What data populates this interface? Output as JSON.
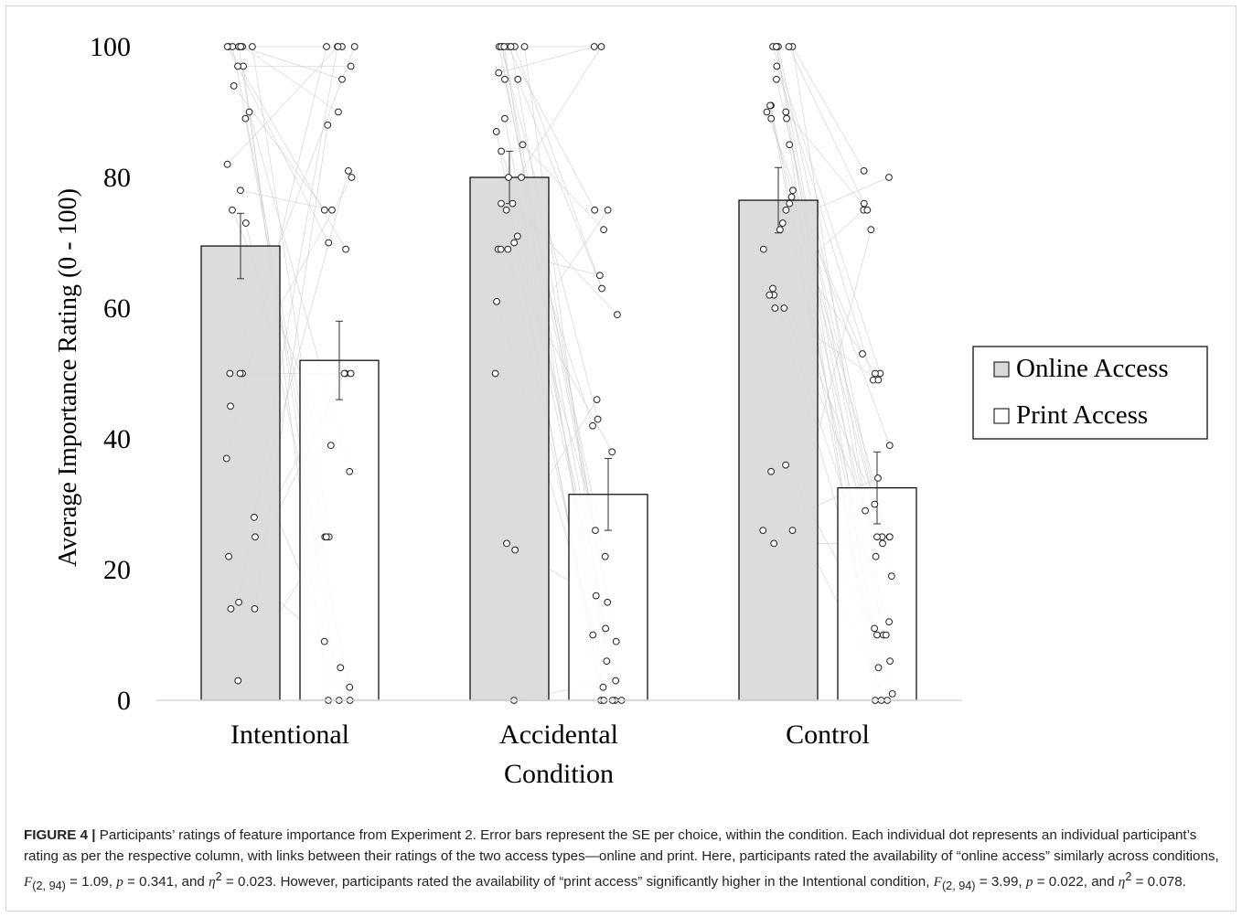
{
  "chart_data": {
    "type": "bar",
    "xlabel": "Condition",
    "ylabel": "Average Importance Rating (0 - 100)",
    "ylim": [
      0,
      100
    ],
    "yticks": [
      0,
      20,
      40,
      60,
      80,
      100
    ],
    "categories": [
      "Intentional",
      "Accidental",
      "Control"
    ],
    "series": [
      {
        "name": "Online Access",
        "color": "#d9d9d9",
        "values": [
          69.5,
          80,
          76.5
        ],
        "se": [
          5,
          4,
          5
        ],
        "points": [
          [
            100,
            100,
            100,
            100,
            100,
            100,
            100,
            100,
            97,
            97,
            94,
            90,
            89,
            82,
            78,
            75,
            73,
            50,
            50,
            50,
            45,
            37,
            28,
            25,
            22,
            15,
            14,
            14,
            3
          ],
          [
            100,
            100,
            100,
            100,
            100,
            100,
            100,
            100,
            100,
            96,
            95,
            95,
            89,
            87,
            85,
            84,
            80,
            80,
            76,
            76,
            75,
            71,
            70,
            69,
            69,
            69,
            61,
            50,
            24,
            23,
            0
          ],
          [
            100,
            100,
            100,
            100,
            100,
            100,
            97,
            95,
            91,
            91,
            90,
            90,
            89,
            89,
            85,
            78,
            77,
            76,
            75,
            73,
            72,
            69,
            63,
            62,
            62,
            60,
            60,
            36,
            35,
            26,
            26,
            24
          ]
        ]
      },
      {
        "name": "Print Access",
        "color": "#ffffff",
        "values": [
          52,
          31.5,
          32.5
        ],
        "se": [
          6,
          5.5,
          5.5
        ],
        "points": [
          [
            100,
            100,
            100,
            100,
            100,
            97,
            95,
            90,
            88,
            81,
            80,
            75,
            75,
            70,
            69,
            50,
            50,
            50,
            39,
            35,
            25,
            25,
            25,
            9,
            5,
            2,
            0,
            0,
            0
          ],
          [
            100,
            100,
            75,
            75,
            72,
            65,
            63,
            59,
            46,
            43,
            42,
            38,
            26,
            22,
            16,
            15,
            11,
            10,
            9,
            6,
            3,
            2,
            0,
            0,
            0,
            0,
            0
          ],
          [
            81,
            80,
            76,
            75,
            75,
            72,
            53,
            50,
            50,
            49,
            49,
            39,
            34,
            30,
            29,
            25,
            25,
            25,
            25,
            24,
            22,
            19,
            12,
            11,
            10,
            10,
            10,
            6,
            5,
            1,
            0,
            0,
            0
          ]
        ]
      }
    ],
    "legend": [
      "Online Access",
      "Print Access"
    ],
    "legend_position": "right",
    "grid": false
  },
  "caption": {
    "label": "FIGURE 4 |",
    "text_parts": [
      " Participants’ ratings of feature importance from Experiment 2. Error bars represent the SE per choice, within the condition. Each individual dot represents an individual participant’s rating as per the respective column, with links between their ratings of the two access types—online and print. Here, participants rated the availability of “online access” similarly across conditions, ",
      "F",
      "(2, 94)",
      " = 1.09, ",
      "p",
      " = 0.341, and ",
      "η",
      "2",
      " = 0.023. However, participants rated the availability of “print access” significantly higher in the Intentional condition, ",
      "F",
      "(2, 94)",
      " = 3.99, ",
      "p",
      " = 0.022, and ",
      "η",
      "2",
      " = 0.078."
    ]
  }
}
